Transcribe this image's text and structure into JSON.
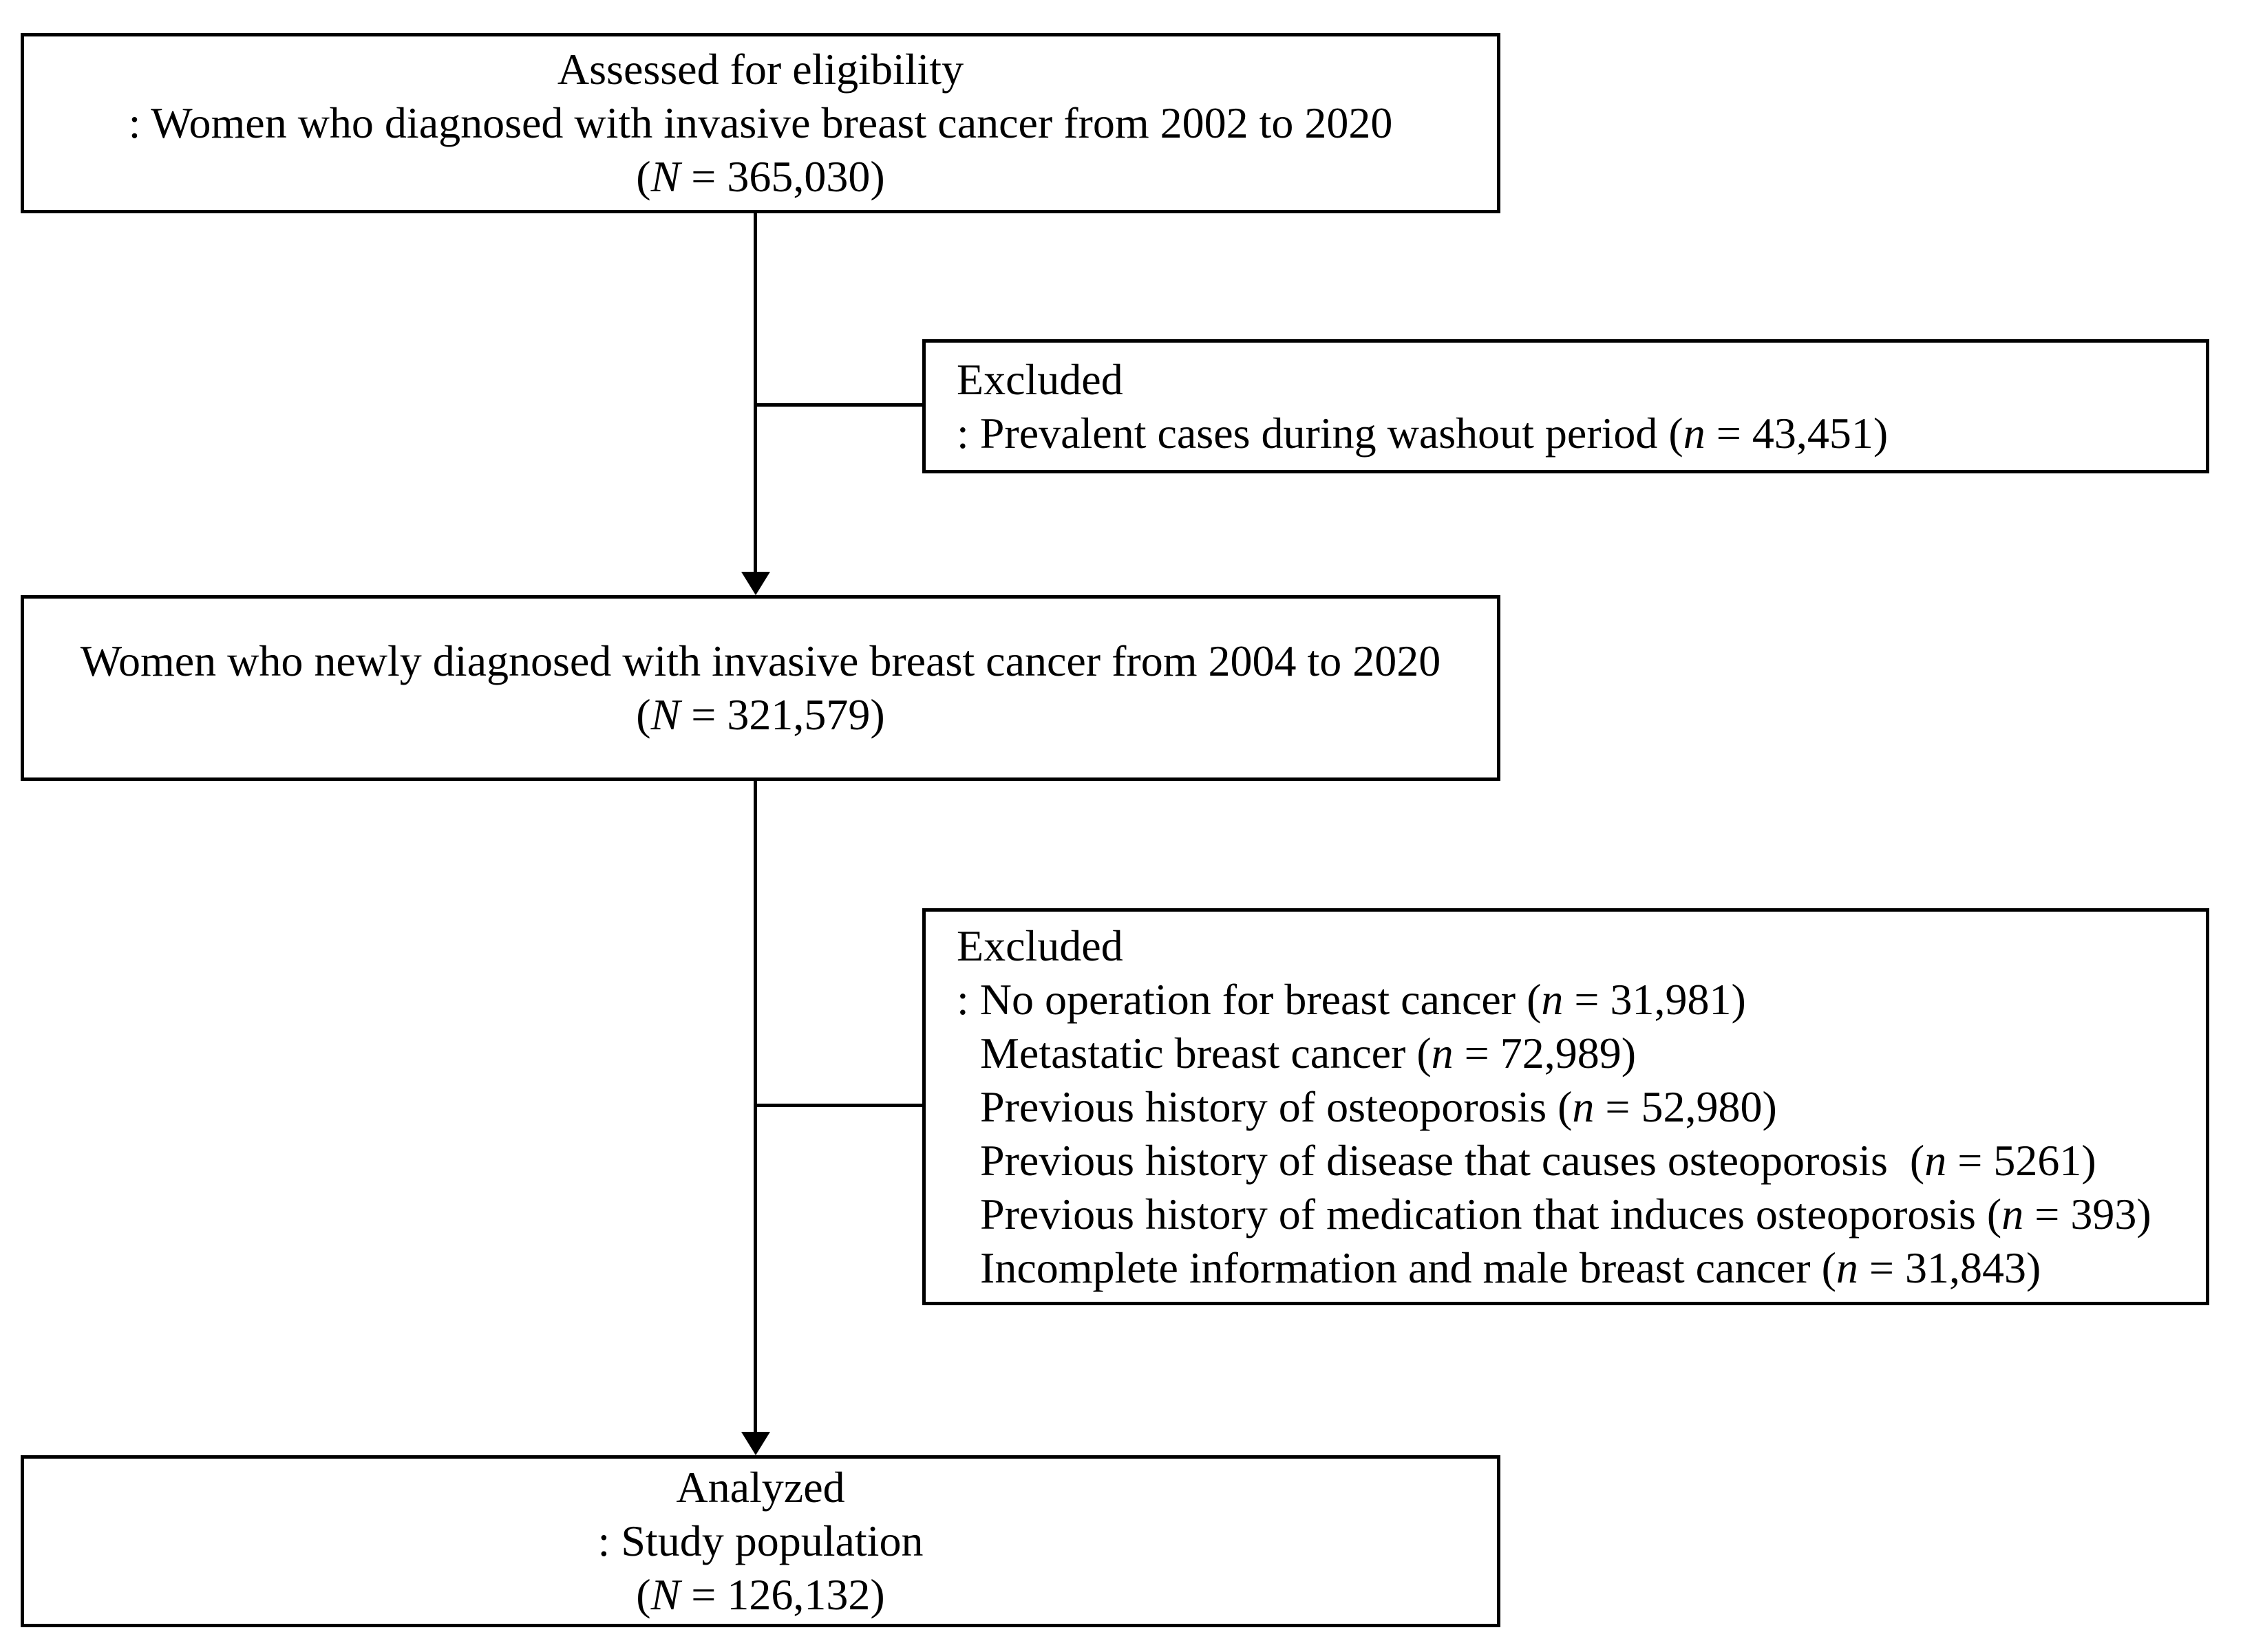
{
  "diagram": {
    "colors": {
      "background": "#ffffff",
      "line": "#000000",
      "text": "#000000"
    },
    "boxes": {
      "assessed": {
        "lines": [
          {
            "segs": [
              {
                "t": "Assessed for eligibility"
              }
            ]
          },
          {
            "segs": [
              {
                "t": ": Women who diagnosed with invasive breast cancer from 2002 to 2020"
              }
            ]
          },
          {
            "segs": [
              {
                "t": "("
              },
              {
                "t": "N",
                "i": true
              },
              {
                "t": " = 365,030)"
              }
            ]
          }
        ]
      },
      "excluded1": {
        "lines": [
          {
            "segs": [
              {
                "t": "Excluded"
              }
            ]
          },
          {
            "segs": [
              {
                "t": ": Prevalent cases during washout period ("
              },
              {
                "t": "n",
                "i": true
              },
              {
                "t": " = 43,451)"
              }
            ]
          }
        ]
      },
      "newly": {
        "lines": [
          {
            "segs": [
              {
                "t": "Women who newly diagnosed with invasive breast cancer from 2004 to 2020"
              }
            ]
          },
          {
            "segs": [
              {
                "t": "("
              },
              {
                "t": "N",
                "i": true
              },
              {
                "t": " = 321,579)"
              }
            ]
          }
        ]
      },
      "excluded2": {
        "lines": [
          {
            "segs": [
              {
                "t": "Excluded"
              }
            ]
          },
          {
            "segs": [
              {
                "t": ": No operation for breast cancer ("
              },
              {
                "t": "n",
                "i": true
              },
              {
                "t": " = 31,981)"
              }
            ]
          },
          {
            "indent": true,
            "segs": [
              {
                "t": "Metastatic breast cancer ("
              },
              {
                "t": "n",
                "i": true
              },
              {
                "t": " = 72,989)"
              }
            ]
          },
          {
            "indent": true,
            "segs": [
              {
                "t": "Previous history of osteoporosis ("
              },
              {
                "t": "n",
                "i": true
              },
              {
                "t": " = 52,980)"
              }
            ]
          },
          {
            "indent": true,
            "segs": [
              {
                "t": "Previous history of disease that causes osteoporosis  ("
              },
              {
                "t": "n",
                "i": true
              },
              {
                "t": " = 5261)"
              }
            ]
          },
          {
            "indent": true,
            "segs": [
              {
                "t": "Previous history of medication that induces osteoporosis ("
              },
              {
                "t": "n",
                "i": true
              },
              {
                "t": " = 393)"
              }
            ]
          },
          {
            "indent": true,
            "segs": [
              {
                "t": "Incomplete information and male breast cancer ("
              },
              {
                "t": "n",
                "i": true
              },
              {
                "t": " = 31,843)"
              }
            ]
          }
        ]
      },
      "analyzed": {
        "lines": [
          {
            "segs": [
              {
                "t": "Analyzed"
              }
            ]
          },
          {
            "segs": [
              {
                "t": ": Study population"
              }
            ]
          },
          {
            "segs": [
              {
                "t": "("
              },
              {
                "t": "N",
                "i": true
              },
              {
                "t": " = 126,132)"
              }
            ]
          }
        ]
      }
    }
  }
}
